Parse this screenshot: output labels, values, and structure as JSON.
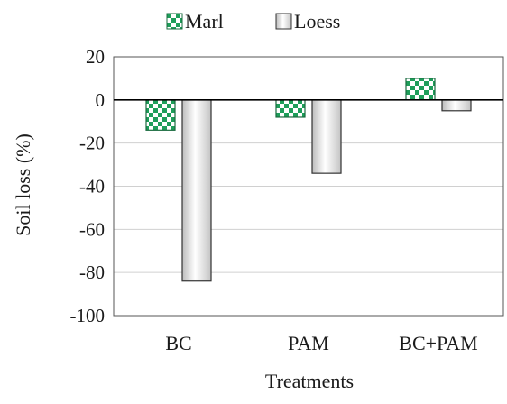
{
  "chart_data": {
    "type": "bar",
    "categories": [
      "BC",
      "PAM",
      "BC+PAM"
    ],
    "series": [
      {
        "name": "Marl",
        "values": [
          -14,
          -8,
          10
        ],
        "color": "#1e9e5a",
        "pattern": "checkerboard"
      },
      {
        "name": "Loess",
        "values": [
          -84,
          -34,
          -5
        ],
        "color": "#d9d9d9",
        "pattern": "gradient"
      }
    ],
    "xlabel": "Treatments",
    "ylabel": "Soil loss  (%)",
    "ylim": [
      -100,
      20
    ],
    "yticks": [
      20,
      0,
      -20,
      -40,
      -60,
      -80,
      -100
    ],
    "grid": true,
    "legend_position": "top"
  }
}
